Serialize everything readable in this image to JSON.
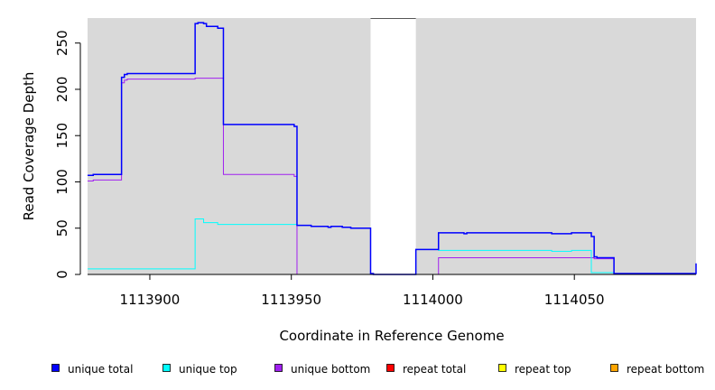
{
  "chart_data": {
    "type": "line",
    "xlabel": "Coordinate in Reference Genome",
    "ylabel": "Read Coverage Depth",
    "xlim": [
      1113878,
      1114093
    ],
    "ylim": [
      0,
      277
    ],
    "x_ticks": [
      1113900,
      1113950,
      1114000,
      1114050
    ],
    "x_tick_labels": [
      "1113900",
      "1113950",
      "1114000",
      "1114050"
    ],
    "y_ticks": [
      0,
      50,
      100,
      150,
      200,
      250
    ],
    "y_tick_labels": [
      "0",
      "50",
      "100",
      "150",
      "200",
      "250"
    ],
    "background_color": "#d9d9d9",
    "gaps": [
      {
        "start": 1113978,
        "end": 1113994
      }
    ],
    "legend_position": "bottom",
    "series": [
      {
        "name": "unique total",
        "color": "#0000ff",
        "width": 1.5,
        "points": [
          [
            1113878,
            107
          ],
          [
            1113880,
            107
          ],
          [
            1113880,
            108
          ],
          [
            1113890,
            108
          ],
          [
            1113890,
            213
          ],
          [
            1113891,
            213
          ],
          [
            1113891,
            216
          ],
          [
            1113892,
            216
          ],
          [
            1113892,
            217
          ],
          [
            1113916,
            217
          ],
          [
            1113916,
            271
          ],
          [
            1113917,
            271
          ],
          [
            1113917,
            272
          ],
          [
            1113919,
            272
          ],
          [
            1113919,
            271
          ],
          [
            1113920,
            271
          ],
          [
            1113920,
            268
          ],
          [
            1113924,
            268
          ],
          [
            1113924,
            266
          ],
          [
            1113926,
            266
          ],
          [
            1113926,
            162
          ],
          [
            1113951,
            162
          ],
          [
            1113951,
            160
          ],
          [
            1113952,
            160
          ],
          [
            1113952,
            53
          ],
          [
            1113957,
            53
          ],
          [
            1113957,
            52
          ],
          [
            1113963,
            52
          ],
          [
            1113963,
            51
          ],
          [
            1113964,
            51
          ],
          [
            1113964,
            52
          ],
          [
            1113968,
            52
          ],
          [
            1113968,
            51
          ],
          [
            1113971,
            51
          ],
          [
            1113971,
            50
          ],
          [
            1113978,
            50
          ],
          [
            1113978,
            1
          ],
          [
            1113979,
            1
          ],
          [
            1113979,
            0
          ],
          [
            1113994,
            0
          ],
          [
            1113994,
            27
          ],
          [
            1114002,
            27
          ],
          [
            1114002,
            45
          ],
          [
            1114011,
            45
          ],
          [
            1114011,
            44
          ],
          [
            1114012,
            44
          ],
          [
            1114012,
            45
          ],
          [
            1114042,
            45
          ],
          [
            1114042,
            44
          ],
          [
            1114049,
            44
          ],
          [
            1114049,
            45
          ],
          [
            1114056,
            45
          ],
          [
            1114056,
            41
          ],
          [
            1114057,
            41
          ],
          [
            1114057,
            19
          ],
          [
            1114058,
            19
          ],
          [
            1114058,
            18
          ],
          [
            1114064,
            18
          ],
          [
            1114064,
            1
          ],
          [
            1114093,
            1
          ],
          [
            1114093,
            12
          ]
        ]
      },
      {
        "name": "unique top",
        "color": "#00ffff",
        "width": 1,
        "points": [
          [
            1113878,
            6
          ],
          [
            1113916,
            6
          ],
          [
            1113916,
            60
          ],
          [
            1113919,
            60
          ],
          [
            1113919,
            56
          ],
          [
            1113924,
            56
          ],
          [
            1113924,
            54
          ],
          [
            1113952,
            54
          ],
          [
            1113952,
            53
          ],
          [
            1113957,
            53
          ],
          [
            1113957,
            52
          ],
          [
            1113963,
            52
          ],
          [
            1113963,
            51
          ],
          [
            1113964,
            51
          ],
          [
            1113964,
            52
          ],
          [
            1113968,
            52
          ],
          [
            1113968,
            51
          ],
          [
            1113971,
            51
          ],
          [
            1113971,
            50
          ],
          [
            1113978,
            50
          ],
          [
            1113978,
            1
          ],
          [
            1113979,
            1
          ],
          [
            1113979,
            0
          ],
          [
            1113994,
            0
          ],
          [
            1113994,
            27
          ],
          [
            1114002,
            27
          ],
          [
            1114002,
            26
          ],
          [
            1114042,
            26
          ],
          [
            1114042,
            25
          ],
          [
            1114049,
            25
          ],
          [
            1114049,
            26
          ],
          [
            1114056,
            26
          ],
          [
            1114056,
            2
          ],
          [
            1114064,
            2
          ],
          [
            1114064,
            1
          ],
          [
            1114093,
            1
          ]
        ]
      },
      {
        "name": "unique bottom",
        "color": "#a020f0",
        "width": 1,
        "points": [
          [
            1113878,
            101
          ],
          [
            1113880,
            101
          ],
          [
            1113880,
            102
          ],
          [
            1113890,
            102
          ],
          [
            1113890,
            207
          ],
          [
            1113891,
            207
          ],
          [
            1113891,
            210
          ],
          [
            1113892,
            210
          ],
          [
            1113892,
            211
          ],
          [
            1113916,
            211
          ],
          [
            1113916,
            212
          ],
          [
            1113926,
            212
          ],
          [
            1113926,
            108
          ],
          [
            1113951,
            108
          ],
          [
            1113951,
            106
          ],
          [
            1113952,
            106
          ],
          [
            1113952,
            0
          ],
          [
            1114002,
            0
          ],
          [
            1114002,
            18
          ],
          [
            1114057,
            18
          ],
          [
            1114057,
            17
          ],
          [
            1114064,
            17
          ],
          [
            1114064,
            0
          ],
          [
            1114093,
            0
          ]
        ]
      },
      {
        "name": "repeat total",
        "color": "#ff0000",
        "width": 1,
        "points": [
          [
            1113878,
            0
          ],
          [
            1114093,
            0
          ]
        ]
      },
      {
        "name": "repeat top",
        "color": "#ffff00",
        "width": 1,
        "points": [
          [
            1113878,
            0
          ],
          [
            1114093,
            0
          ]
        ]
      },
      {
        "name": "repeat bottom",
        "color": "#ffa500",
        "width": 1,
        "points": [
          [
            1113878,
            0
          ],
          [
            1114093,
            0
          ]
        ]
      }
    ]
  }
}
